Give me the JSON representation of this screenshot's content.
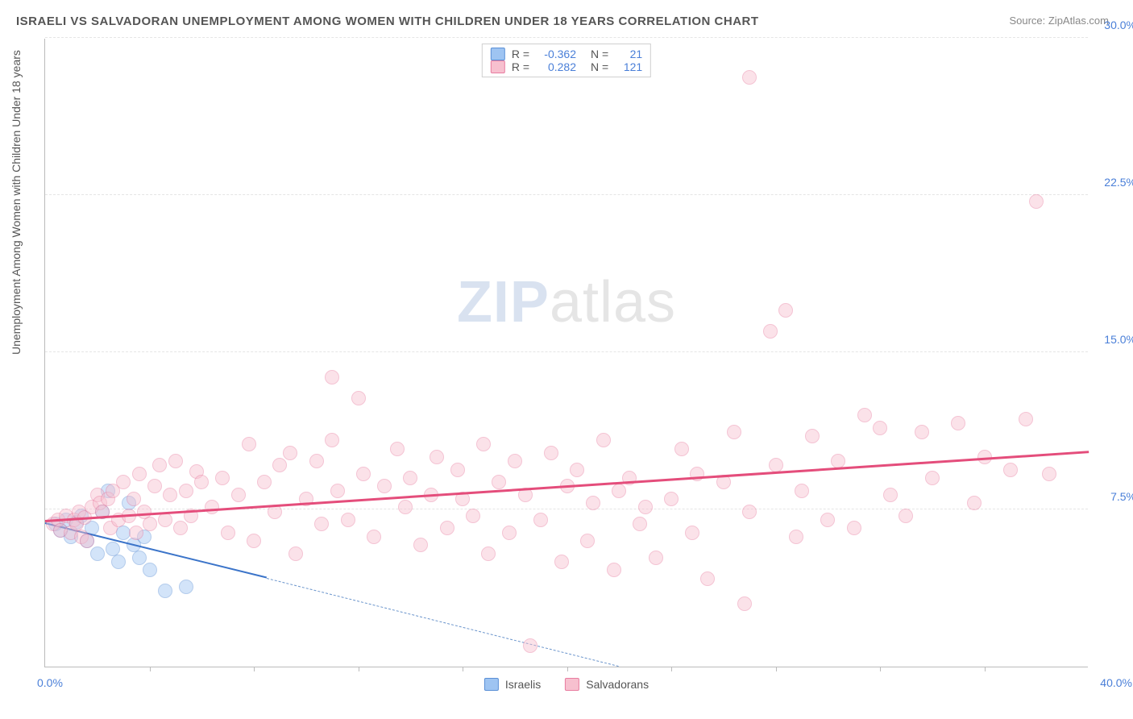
{
  "title": "ISRAELI VS SALVADORAN UNEMPLOYMENT AMONG WOMEN WITH CHILDREN UNDER 18 YEARS CORRELATION CHART",
  "source_label": "Source: ",
  "source_value": "ZipAtlas.com",
  "ylabel": "Unemployment Among Women with Children Under 18 years",
  "watermark_zip": "ZIP",
  "watermark_atlas": "atlas",
  "chart": {
    "type": "scatter",
    "xlim": [
      0,
      40
    ],
    "ylim": [
      0,
      30
    ],
    "x_origin_label": "0.0%",
    "x_max_label": "40.0%",
    "ytick_labels": [
      "7.5%",
      "15.0%",
      "22.5%",
      "30.0%"
    ],
    "ytick_values": [
      7.5,
      15,
      22.5,
      30
    ],
    "xtick_values": [
      4,
      8,
      12,
      16,
      20,
      24,
      28,
      32,
      36
    ],
    "background_color": "#ffffff",
    "grid_color": "#e5e5e5",
    "axis_color": "#bbbbbb",
    "tick_label_color": "#4a7fd8",
    "marker_radius": 9,
    "marker_opacity": 0.45,
    "series": [
      {
        "name": "Israelis",
        "legend_label": "Israelis",
        "color_fill": "#9ec4f2",
        "color_stroke": "#5a8fd6",
        "R_label": "R =",
        "R_value": "-0.362",
        "N_label": "N =",
        "N_value": "21",
        "trend": {
          "x1": 0,
          "y1": 6.8,
          "x2": 8.5,
          "y2": 4.2,
          "color": "#3b74c9",
          "width": 2
        },
        "trend_ext": {
          "x1": 8.5,
          "y1": 4.2,
          "x2": 22,
          "y2": 0,
          "color": "#6b95cc",
          "dashed": true
        },
        "points": [
          [
            0.4,
            6.8
          ],
          [
            0.6,
            6.5
          ],
          [
            0.8,
            7.0
          ],
          [
            1.0,
            6.2
          ],
          [
            1.2,
            6.9
          ],
          [
            1.4,
            7.2
          ],
          [
            1.6,
            6.0
          ],
          [
            1.8,
            6.6
          ],
          [
            2.0,
            5.4
          ],
          [
            2.2,
            7.4
          ],
          [
            2.4,
            8.4
          ],
          [
            2.6,
            5.6
          ],
          [
            2.8,
            5.0
          ],
          [
            3.0,
            6.4
          ],
          [
            3.2,
            7.8
          ],
          [
            3.6,
            5.2
          ],
          [
            4.0,
            4.6
          ],
          [
            4.6,
            3.6
          ],
          [
            5.4,
            3.8
          ],
          [
            3.4,
            5.8
          ],
          [
            3.8,
            6.2
          ]
        ]
      },
      {
        "name": "Salvadorans",
        "legend_label": "Salvadorans",
        "color_fill": "#f7c0cf",
        "color_stroke": "#e87ca0",
        "R_label": "R =",
        "R_value": "0.282",
        "N_label": "N =",
        "N_value": "121",
        "trend": {
          "x1": 0,
          "y1": 6.9,
          "x2": 40,
          "y2": 10.2,
          "color": "#e44d7b",
          "width": 2.5
        },
        "points": [
          [
            0.3,
            6.8
          ],
          [
            0.5,
            7.0
          ],
          [
            0.6,
            6.5
          ],
          [
            0.8,
            7.2
          ],
          [
            1.0,
            6.4
          ],
          [
            1.1,
            7.0
          ],
          [
            1.2,
            6.8
          ],
          [
            1.3,
            7.4
          ],
          [
            1.4,
            6.2
          ],
          [
            1.5,
            7.1
          ],
          [
            1.6,
            6.0
          ],
          [
            1.8,
            7.6
          ],
          [
            2.0,
            8.2
          ],
          [
            2.1,
            7.8
          ],
          [
            2.2,
            7.4
          ],
          [
            2.4,
            8.0
          ],
          [
            2.5,
            6.6
          ],
          [
            2.6,
            8.4
          ],
          [
            2.8,
            7.0
          ],
          [
            3.0,
            8.8
          ],
          [
            3.2,
            7.2
          ],
          [
            3.4,
            8.0
          ],
          [
            3.5,
            6.4
          ],
          [
            3.6,
            9.2
          ],
          [
            3.8,
            7.4
          ],
          [
            4.0,
            6.8
          ],
          [
            4.2,
            8.6
          ],
          [
            4.4,
            9.6
          ],
          [
            4.6,
            7.0
          ],
          [
            4.8,
            8.2
          ],
          [
            5.0,
            9.8
          ],
          [
            5.2,
            6.6
          ],
          [
            5.4,
            8.4
          ],
          [
            5.6,
            7.2
          ],
          [
            5.8,
            9.3
          ],
          [
            6.0,
            8.8
          ],
          [
            6.4,
            7.6
          ],
          [
            6.8,
            9.0
          ],
          [
            7.0,
            6.4
          ],
          [
            7.4,
            8.2
          ],
          [
            7.8,
            10.6
          ],
          [
            8.0,
            6.0
          ],
          [
            8.4,
            8.8
          ],
          [
            8.8,
            7.4
          ],
          [
            9.0,
            9.6
          ],
          [
            9.4,
            10.2
          ],
          [
            9.6,
            5.4
          ],
          [
            10.0,
            8.0
          ],
          [
            10.4,
            9.8
          ],
          [
            10.6,
            6.8
          ],
          [
            11.0,
            10.8
          ],
          [
            11.2,
            8.4
          ],
          [
            11.6,
            7.0
          ],
          [
            12.0,
            12.8
          ],
          [
            12.2,
            9.2
          ],
          [
            12.6,
            6.2
          ],
          [
            13.0,
            8.6
          ],
          [
            11.0,
            13.8
          ],
          [
            13.5,
            10.4
          ],
          [
            13.8,
            7.6
          ],
          [
            14.0,
            9.0
          ],
          [
            14.4,
            5.8
          ],
          [
            14.8,
            8.2
          ],
          [
            15.0,
            10.0
          ],
          [
            15.4,
            6.6
          ],
          [
            15.8,
            9.4
          ],
          [
            16.0,
            8.0
          ],
          [
            16.4,
            7.2
          ],
          [
            16.8,
            10.6
          ],
          [
            17.0,
            5.4
          ],
          [
            17.4,
            8.8
          ],
          [
            17.8,
            6.4
          ],
          [
            18.0,
            9.8
          ],
          [
            18.4,
            8.2
          ],
          [
            18.6,
            1.0
          ],
          [
            19.0,
            7.0
          ],
          [
            19.4,
            10.2
          ],
          [
            19.8,
            5.0
          ],
          [
            20.0,
            8.6
          ],
          [
            20.4,
            9.4
          ],
          [
            20.8,
            6.0
          ],
          [
            21.0,
            7.8
          ],
          [
            21.4,
            10.8
          ],
          [
            21.8,
            4.6
          ],
          [
            22.0,
            8.4
          ],
          [
            22.4,
            9.0
          ],
          [
            22.8,
            6.8
          ],
          [
            23.0,
            7.6
          ],
          [
            23.4,
            5.2
          ],
          [
            24.0,
            8.0
          ],
          [
            24.4,
            10.4
          ],
          [
            24.8,
            6.4
          ],
          [
            25.0,
            9.2
          ],
          [
            25.4,
            4.2
          ],
          [
            26.0,
            8.8
          ],
          [
            26.4,
            11.2
          ],
          [
            26.8,
            3.0
          ],
          [
            27.0,
            7.4
          ],
          [
            27.8,
            16.0
          ],
          [
            27.0,
            28.1
          ],
          [
            28.0,
            9.6
          ],
          [
            28.4,
            17.0
          ],
          [
            28.8,
            6.2
          ],
          [
            29.0,
            8.4
          ],
          [
            29.4,
            11.0
          ],
          [
            30.0,
            7.0
          ],
          [
            30.4,
            9.8
          ],
          [
            31.0,
            6.6
          ],
          [
            31.4,
            12.0
          ],
          [
            32.0,
            11.4
          ],
          [
            32.4,
            8.2
          ],
          [
            33.0,
            7.2
          ],
          [
            33.6,
            11.2
          ],
          [
            34.0,
            9.0
          ],
          [
            35.0,
            11.6
          ],
          [
            35.6,
            7.8
          ],
          [
            36.0,
            10.0
          ],
          [
            37.0,
            9.4
          ],
          [
            37.6,
            11.8
          ],
          [
            38.0,
            22.2
          ],
          [
            38.5,
            9.2
          ]
        ]
      }
    ]
  }
}
